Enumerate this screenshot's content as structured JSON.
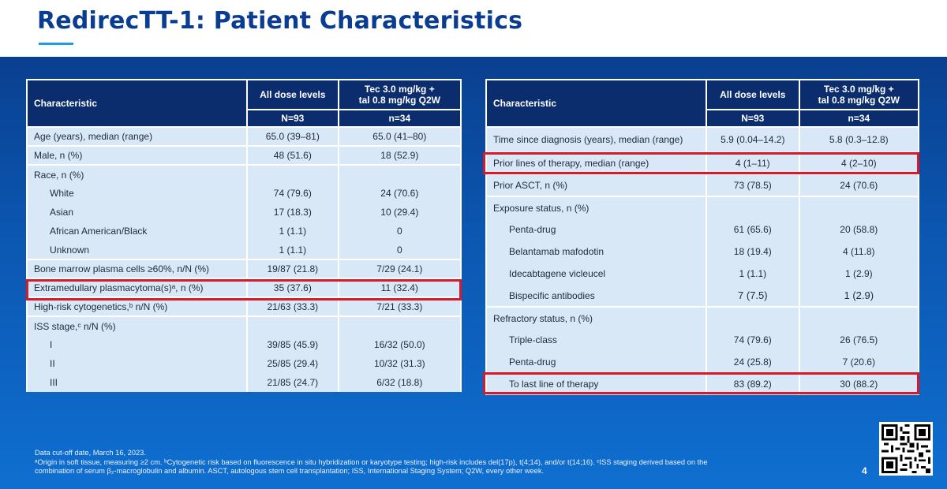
{
  "title": "RedirecTT-1: Patient Characteristics",
  "page_number": "4",
  "left_table": {
    "headers": {
      "characteristic": "Characteristic",
      "col1": "All dose levels",
      "col2_line1": "Tec 3.0 mg/kg +",
      "col2_line2": "tal 0.8 mg/kg Q2W",
      "n1": "N=93",
      "n2": "n=34"
    },
    "rows": [
      {
        "label": "Age (years), median (range)",
        "v1": "65.0  (39–81)",
        "v2": "65.0  (41–80)"
      },
      {
        "label": "Male, n (%)",
        "v1": "48  (51.6)",
        "v2": "18  (52.9)"
      },
      {
        "label": "Race, n (%)",
        "v1": "",
        "v2": ""
      },
      {
        "label": "White",
        "v1": "74  (79.6)",
        "v2": "24  (70.6)"
      },
      {
        "label": "Asian",
        "v1": "17  (18.3)",
        "v2": "10  (29.4)"
      },
      {
        "label": "African American/Black",
        "v1": "1  (1.1)",
        "v2": "0"
      },
      {
        "label": "Unknown",
        "v1": "1  (1.1)",
        "v2": "0"
      },
      {
        "label": "Bone marrow plasma cells ≥60%,  n/N (%)",
        "v1": "19/87  (21.8)",
        "v2": "7/29  (24.1)"
      },
      {
        "label": "Extramedullary  plasmacytoma(s)ᵃ,  n (%)",
        "v1": "35  (37.6)",
        "v2": "11  (32.4)"
      },
      {
        "label": "High-risk cytogenetics,ᵇ n/N (%)",
        "v1": "21/63  (33.3)",
        "v2": "7/21  (33.3)"
      },
      {
        "label": "ISS stage,ᶜ n/N (%)",
        "v1": "",
        "v2": ""
      },
      {
        "label": "I",
        "v1": "39/85  (45.9)",
        "v2": "16/32  (50.0)"
      },
      {
        "label": "II",
        "v1": "25/85  (29.4)",
        "v2": "10/32  (31.3)"
      },
      {
        "label": "III",
        "v1": "21/85  (24.7)",
        "v2": "6/32  (18.8)"
      }
    ]
  },
  "right_table": {
    "headers": {
      "characteristic": "Characteristic",
      "col1": "All dose levels",
      "col2_line1": "Tec 3.0 mg/kg +",
      "col2_line2": "tal 0.8 mg/kg Q2W",
      "n1": "N=93",
      "n2": "n=34"
    },
    "rows": [
      {
        "label": "Time since diagnosis (years), median (range)",
        "v1": "5.9  (0.04–14.2)",
        "v2": "5.8  (0.3–12.8)"
      },
      {
        "label": "Prior lines of therapy, median (range)",
        "v1": "4  (1–11)",
        "v2": "4  (2–10)"
      },
      {
        "label": "Prior ASCT, n (%)",
        "v1": "73  (78.5)",
        "v2": "24  (70.6)"
      },
      {
        "label": "Exposure status, n (%)",
        "v1": "",
        "v2": ""
      },
      {
        "label": "Penta-drug",
        "v1": "61  (65.6)",
        "v2": "20  (58.8)"
      },
      {
        "label": "Belantamab  mafodotin",
        "v1": "18  (19.4)",
        "v2": "4  (11.8)"
      },
      {
        "label": "Idecabtagene  vicleucel",
        "v1": "1  (1.1)",
        "v2": "1  (2.9)"
      },
      {
        "label": "Bispecific  antibodies",
        "v1": "7 (7.5)",
        "v2": "1 (2.9)"
      },
      {
        "label": "Refractory  status, n (%)",
        "v1": "",
        "v2": ""
      },
      {
        "label": "Triple-class",
        "v1": "74  (79.6)",
        "v2": "26  (76.5)"
      },
      {
        "label": "Penta-drug",
        "v1": "24  (25.8)",
        "v2": "7  (20.6)"
      },
      {
        "label": "To last line of therapy",
        "v1": "83  (89.2)",
        "v2": "30  (88.2)"
      }
    ]
  },
  "footnotes": {
    "line1": "Data cut-off date, March 16, 2023.",
    "line2": "ᵃOrigin in soft tissue, measuring ≥2 cm. ᵇCytogenetic risk based on fluorescence in situ hybridization or karyotype testing; high-risk includes del(17p), t(4;14), and/or t(14;16). ᶜISS staging derived based on the",
    "line3": "combination of serum β₂-macroglobulin and albumin. ASCT, autologous stem cell transplantation; ISS, International Staging System; Q2W, every other week."
  },
  "colors": {
    "brand": "#0a3d91",
    "accent": "#1aa0e0",
    "header": "#0b2d6e",
    "highlight": "#d7192a"
  },
  "icons": {
    "qr": "qr-code-icon"
  }
}
